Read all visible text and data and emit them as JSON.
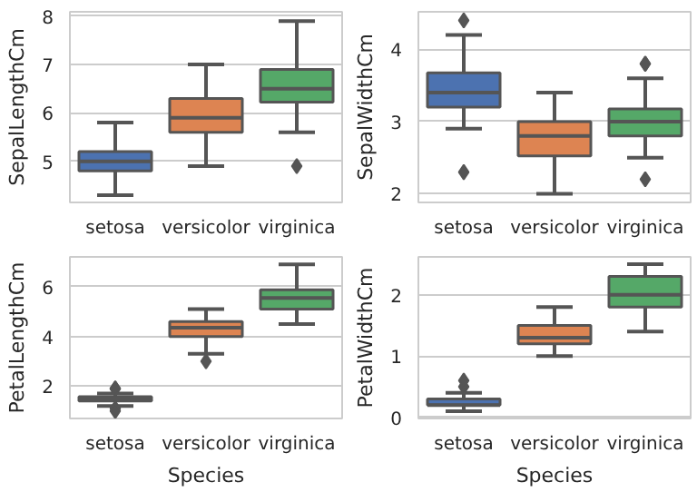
{
  "chart_data": [
    {
      "type": "box",
      "categories": [
        "setosa",
        "versicolor",
        "virginica"
      ],
      "ylabel": "SepalLengthCm",
      "ylim": [
        4.15,
        8.09
      ],
      "yticks": [
        5,
        6,
        7,
        8
      ],
      "grid": "y",
      "marker": "diamond",
      "colors": [
        "#4c72b0",
        "#dd8452",
        "#55a868"
      ],
      "boxes": [
        {
          "low": 4.3,
          "q1": 4.8,
          "median": 5.0,
          "q3": 5.2,
          "high": 5.8
        },
        {
          "low": 4.9,
          "q1": 5.6,
          "median": 5.9,
          "q3": 6.3,
          "high": 7.0
        },
        {
          "low": 5.6,
          "q1": 6.225,
          "median": 6.5,
          "q3": 6.9,
          "high": 7.9,
          "outliers": [
            4.9
          ]
        }
      ]
    },
    {
      "type": "box",
      "categories": [
        "setosa",
        "versicolor",
        "virginica"
      ],
      "ylabel": "SepalWidthCm",
      "ylim": [
        1.88,
        4.52
      ],
      "yticks": [
        2,
        3,
        4
      ],
      "grid": "y",
      "marker": "diamond",
      "colors": [
        "#4c72b0",
        "#dd8452",
        "#55a868"
      ],
      "boxes": [
        {
          "low": 2.9,
          "q1": 3.2,
          "median": 3.4,
          "q3": 3.675,
          "high": 4.2,
          "outliers": [
            4.4,
            2.3
          ]
        },
        {
          "low": 2.0,
          "q1": 2.525,
          "median": 2.8,
          "q3": 3.0,
          "high": 3.4
        },
        {
          "low": 2.5,
          "q1": 2.8,
          "median": 3.0,
          "q3": 3.175,
          "high": 3.6,
          "outliers": [
            3.8,
            3.8,
            2.2
          ]
        }
      ]
    },
    {
      "type": "box",
      "categories": [
        "setosa",
        "versicolor",
        "virginica"
      ],
      "xlabel": "Species",
      "ylabel": "PetalLengthCm",
      "ylim": [
        0.7,
        7.2
      ],
      "yticks": [
        2,
        4,
        6
      ],
      "grid": "y",
      "marker": "diamond",
      "colors": [
        "#4c72b0",
        "#dd8452",
        "#55a868"
      ],
      "boxes": [
        {
          "low": 1.2,
          "q1": 1.4,
          "median": 1.5,
          "q3": 1.575,
          "high": 1.7,
          "outliers": [
            1.1,
            1.0,
            1.9,
            1.9
          ]
        },
        {
          "low": 3.3,
          "q1": 4.0,
          "median": 4.35,
          "q3": 4.6,
          "high": 5.1,
          "outliers": [
            3.0
          ]
        },
        {
          "low": 4.5,
          "q1": 5.1,
          "median": 5.55,
          "q3": 5.875,
          "high": 6.9
        }
      ]
    },
    {
      "type": "box",
      "categories": [
        "setosa",
        "versicolor",
        "virginica"
      ],
      "xlabel": "Species",
      "ylabel": "PetalWidthCm",
      "ylim": [
        -0.02,
        2.62
      ],
      "yticks": [
        0,
        1,
        2
      ],
      "grid": "y",
      "marker": "diamond",
      "colors": [
        "#4c72b0",
        "#dd8452",
        "#55a868"
      ],
      "boxes": [
        {
          "low": 0.1,
          "q1": 0.2,
          "median": 0.2,
          "q3": 0.3,
          "high": 0.4,
          "outliers": [
            0.5,
            0.6
          ]
        },
        {
          "low": 1.0,
          "q1": 1.2,
          "median": 1.3,
          "q3": 1.5,
          "high": 1.8
        },
        {
          "low": 1.4,
          "q1": 1.8,
          "median": 2.0,
          "q3": 2.3,
          "high": 2.5
        }
      ]
    }
  ]
}
